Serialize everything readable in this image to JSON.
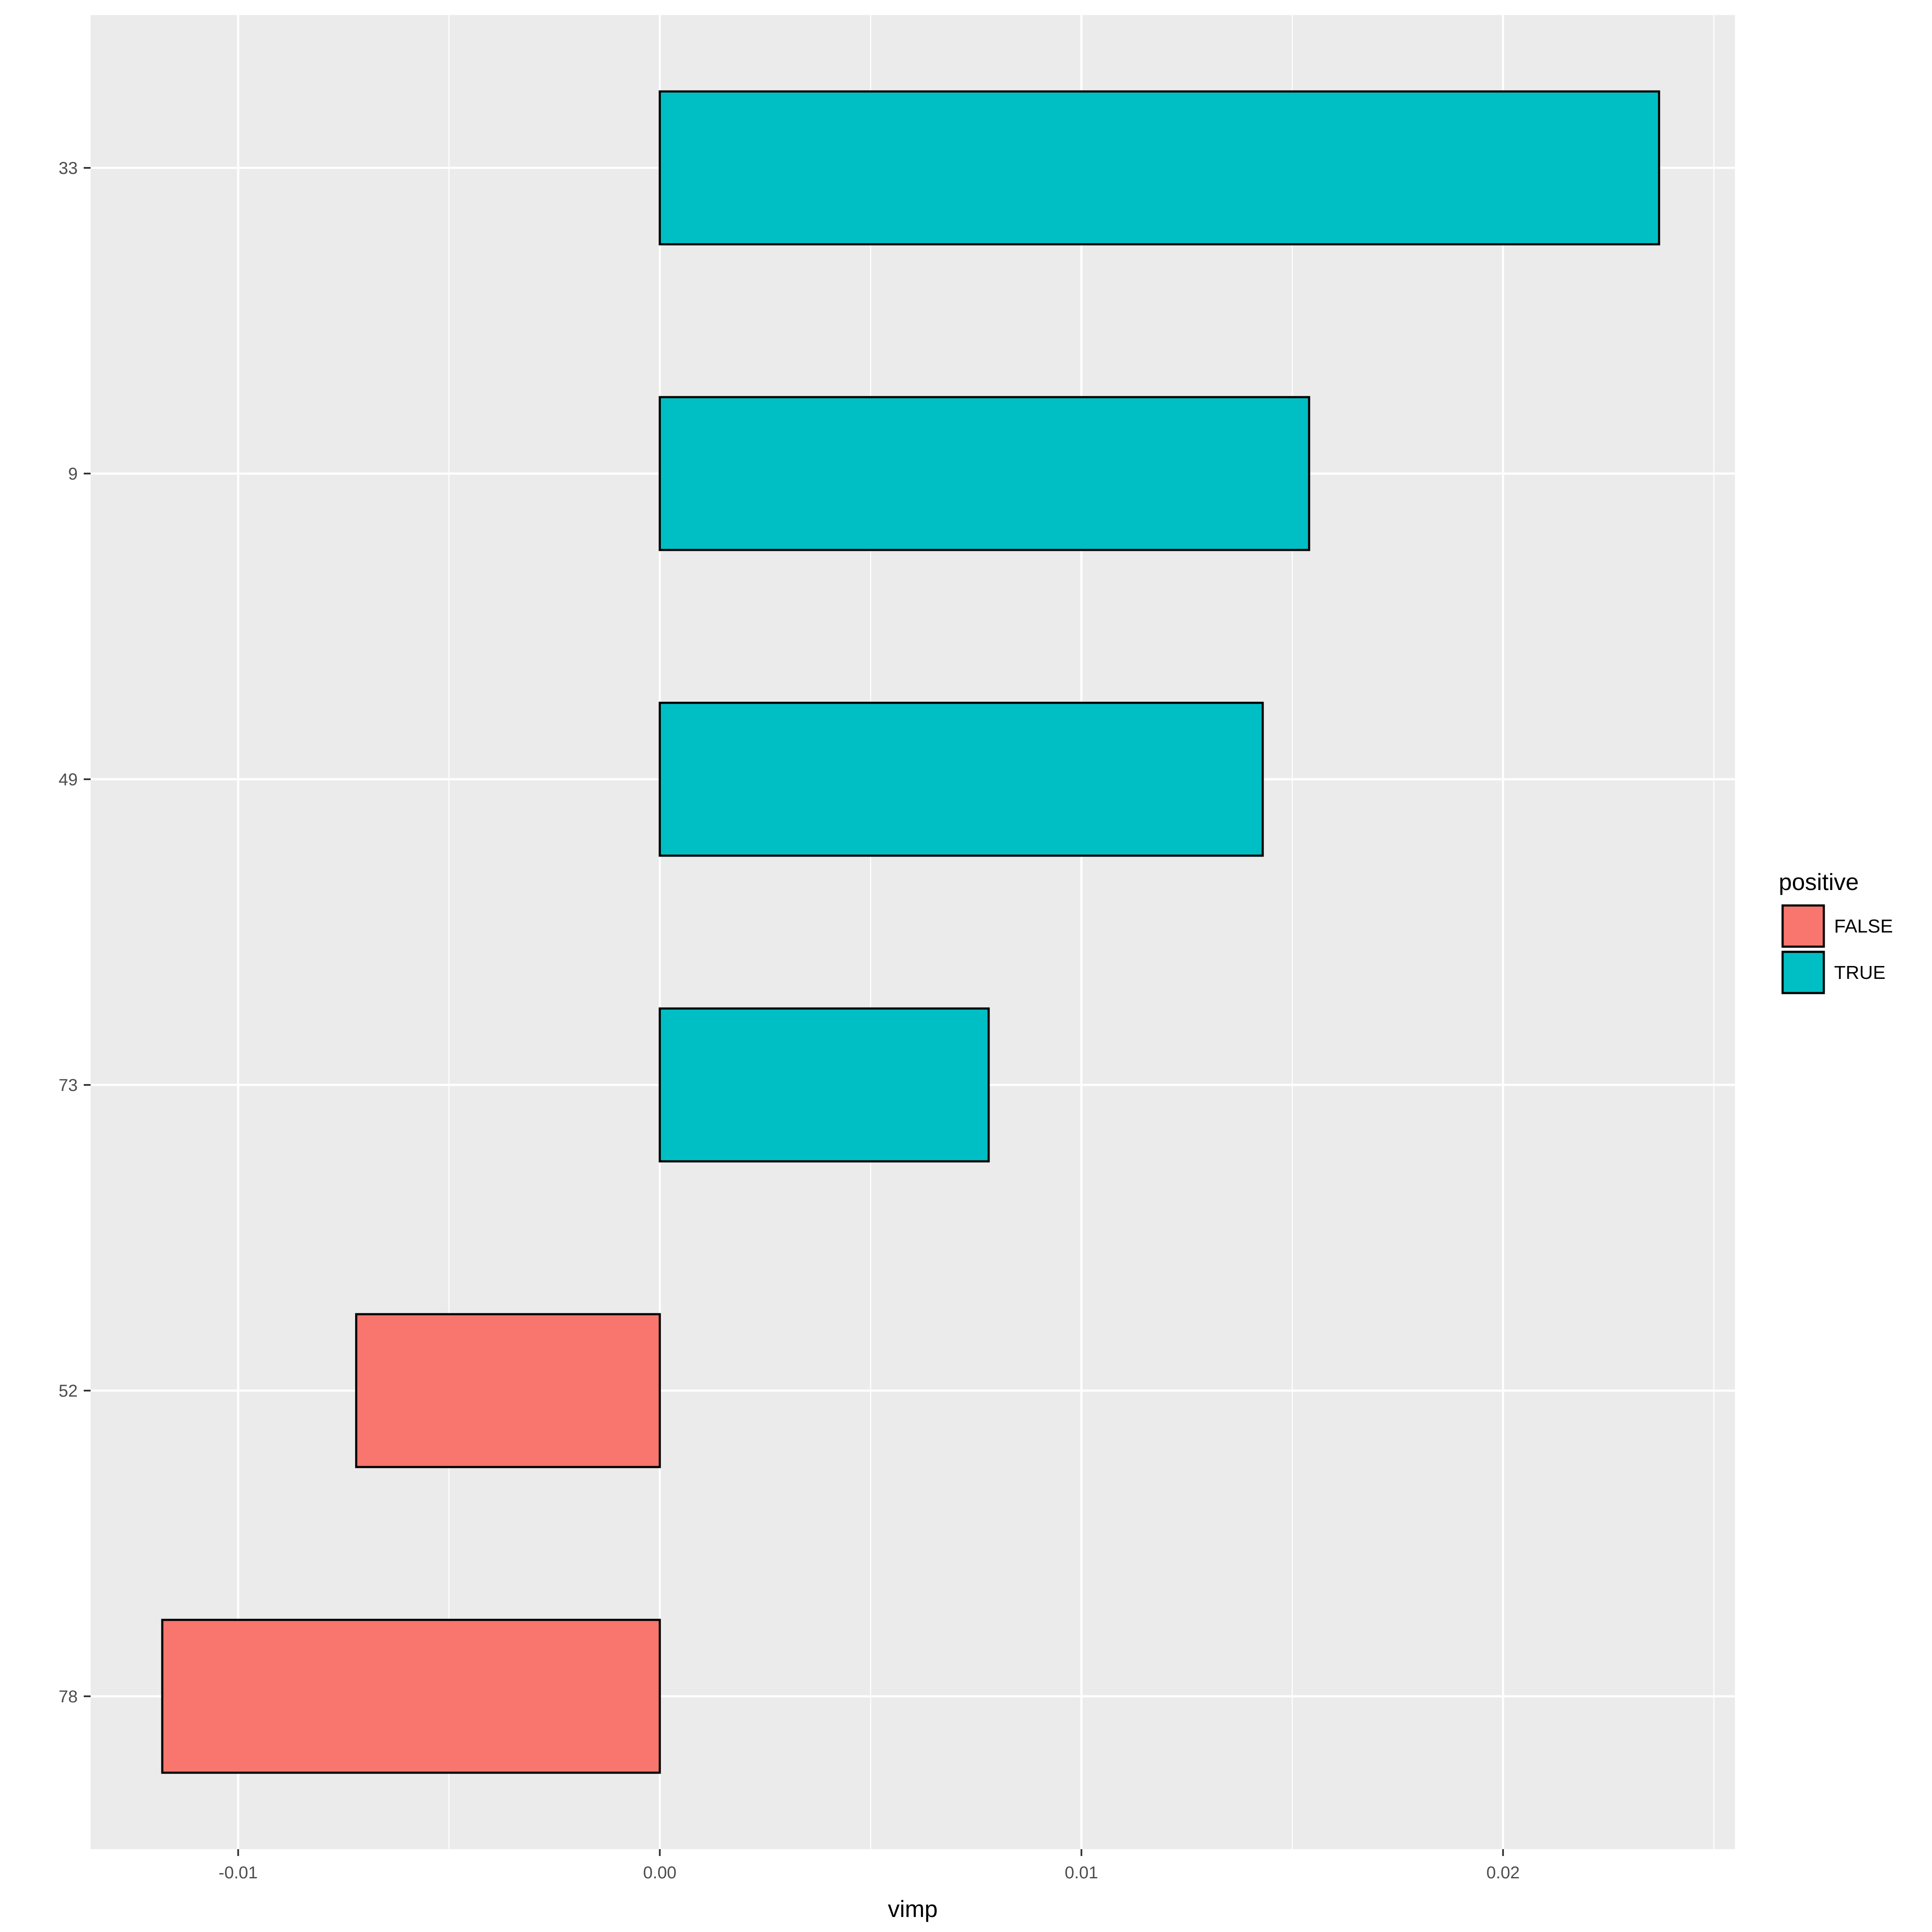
{
  "chart_data": {
    "type": "bar",
    "orientation": "horizontal",
    "categories": [
      "33",
      "9",
      "49",
      "73",
      "52",
      "78"
    ],
    "values": [
      0.0237,
      0.0154,
      0.0143,
      0.0078,
      -0.0072,
      -0.0118
    ],
    "group": [
      "TRUE",
      "TRUE",
      "TRUE",
      "TRUE",
      "FALSE",
      "FALSE"
    ],
    "xlabel": "vimp",
    "ylabel": "",
    "xlim": [
      -0.0135,
      0.0255
    ],
    "xticks": [
      -0.01,
      0.0,
      0.01,
      0.02
    ],
    "xtick_labels": [
      "-0.01",
      "0.00",
      "0.01",
      "0.02"
    ],
    "grid": true,
    "legend": {
      "title": "positive",
      "position": "right",
      "entries": [
        {
          "label": "FALSE",
          "color": "#F8766D"
        },
        {
          "label": "TRUE",
          "color": "#00BFC4"
        }
      ]
    },
    "colors": {
      "FALSE": "#F8766D",
      "TRUE": "#00BFC4",
      "panel_background": "#EBEBEB",
      "grid": "#FFFFFF",
      "bar_outline": "#000000"
    }
  }
}
